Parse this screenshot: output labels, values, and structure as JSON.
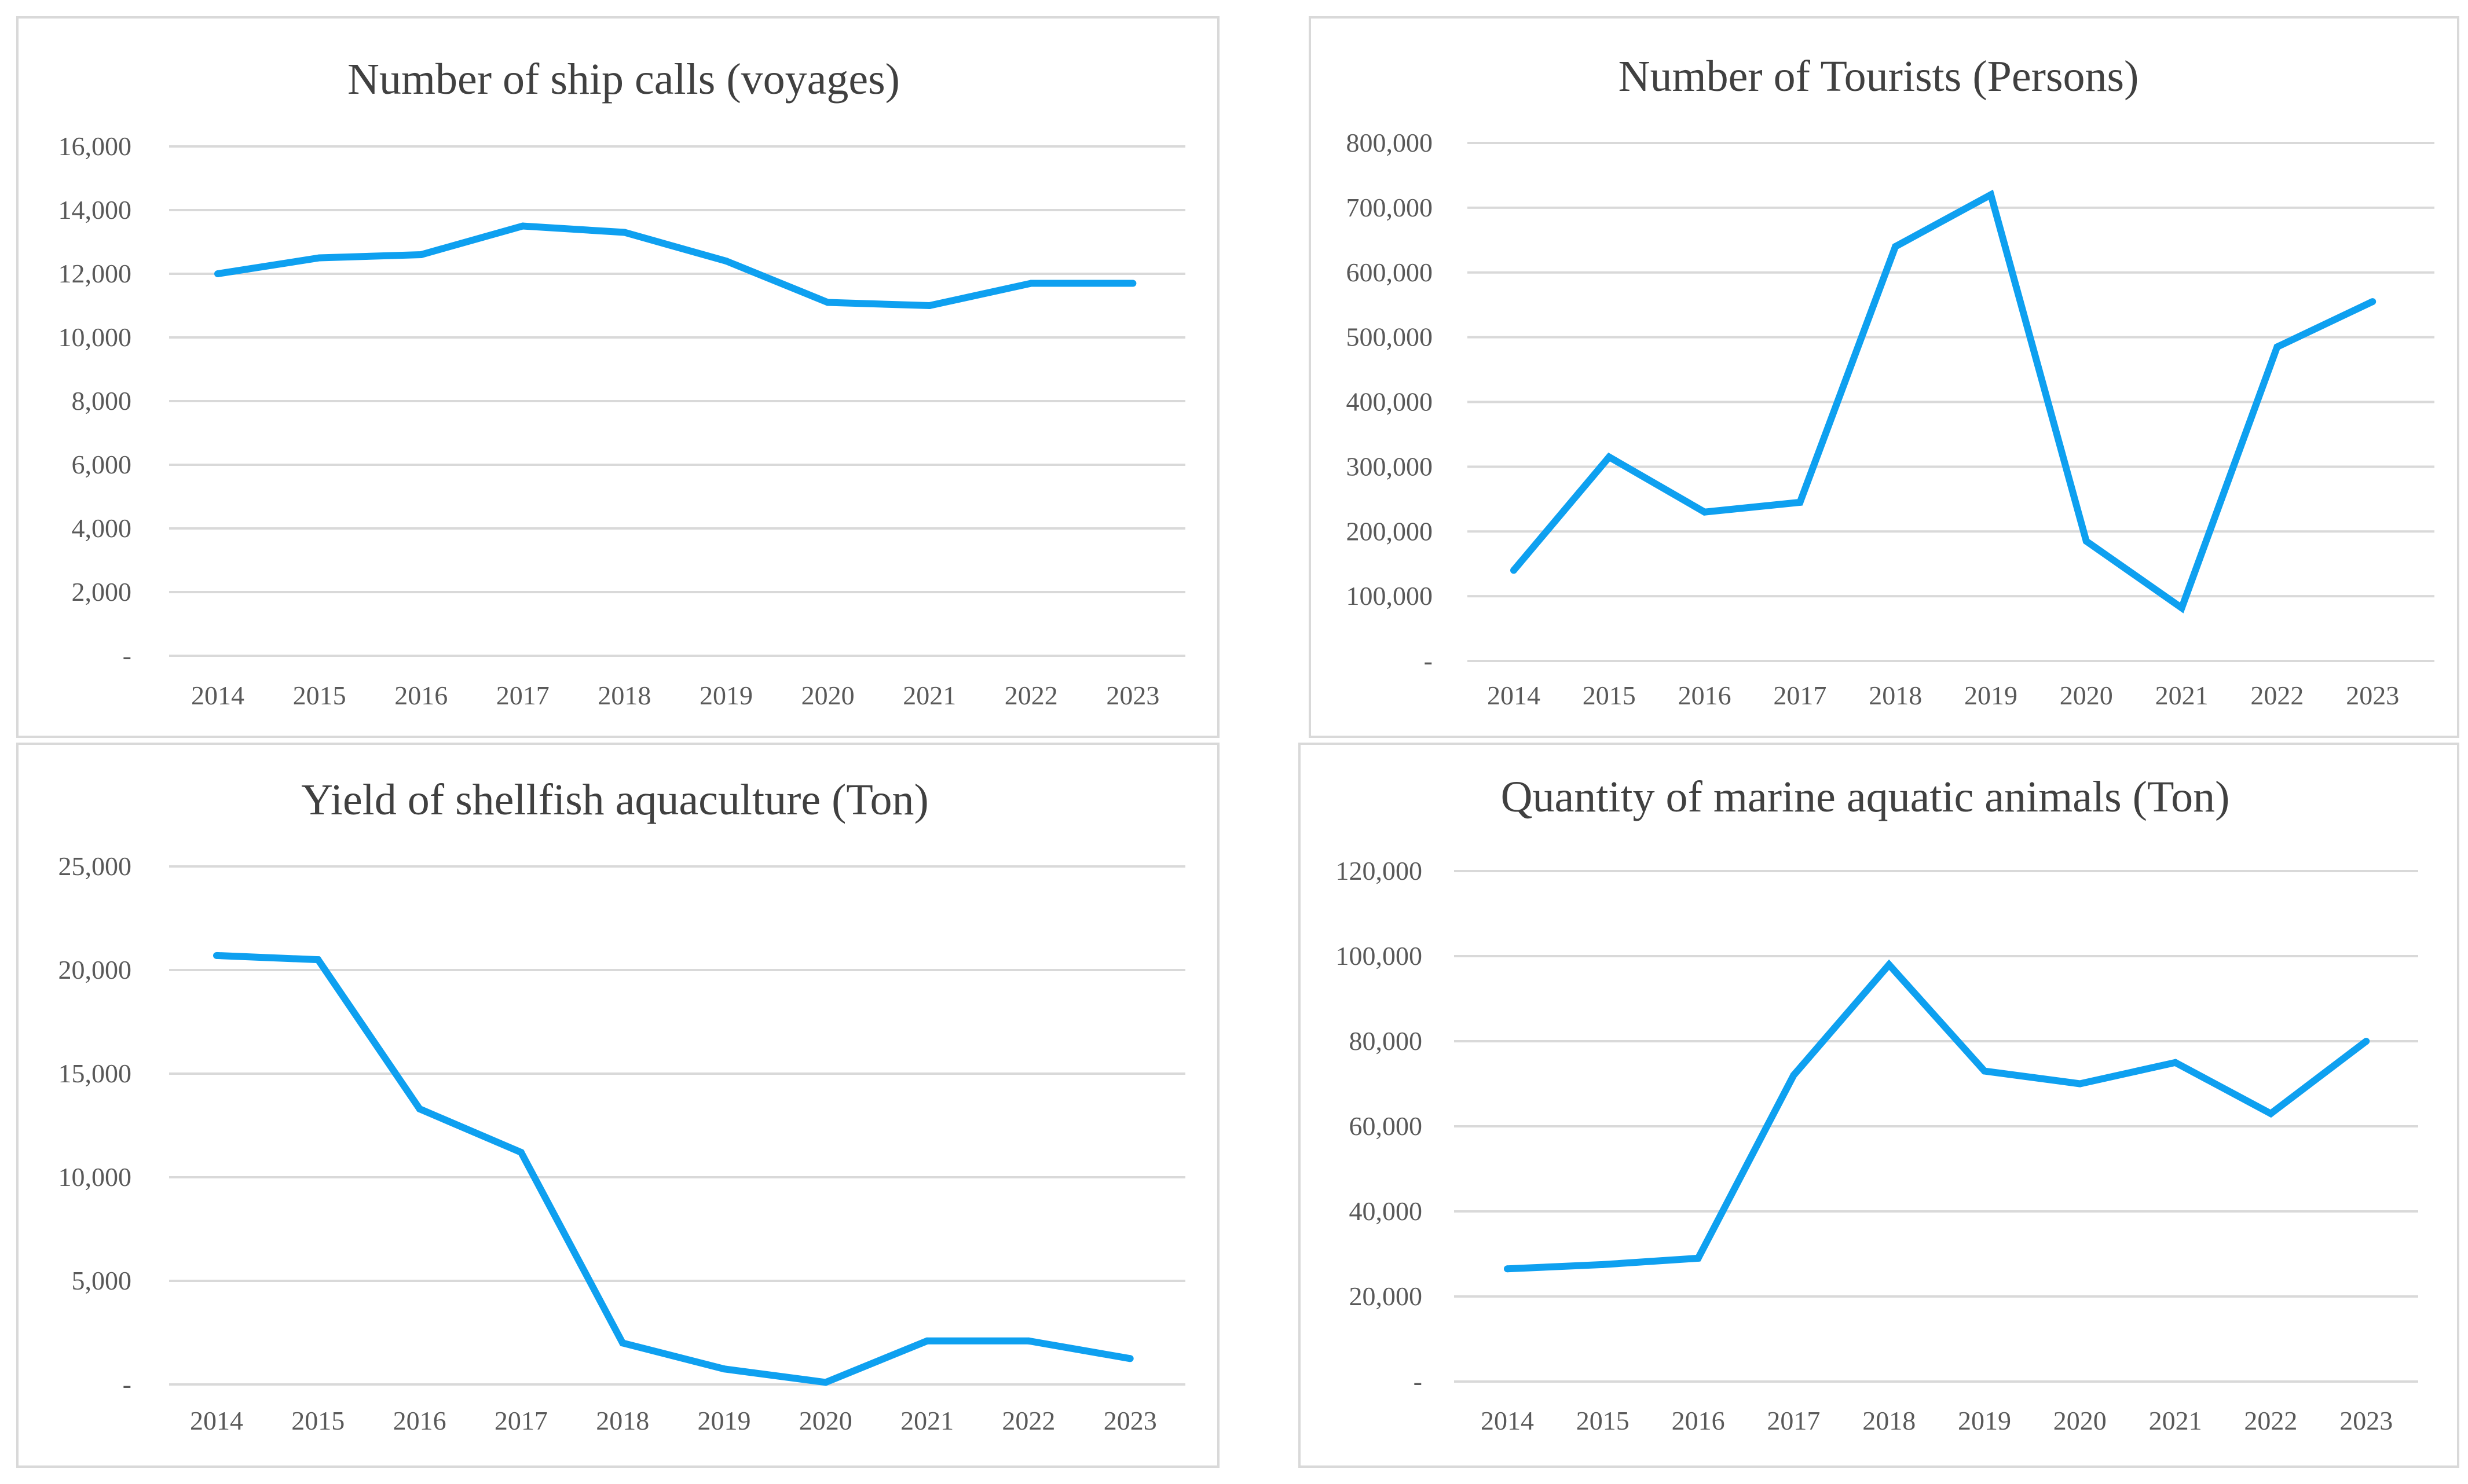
{
  "colors": {
    "series": "#0ea0f0",
    "grid": "#d9d9d9",
    "title": "#404040",
    "tick": "#595959",
    "border": "#d9d9d9"
  },
  "chart_data": [
    {
      "type": "line",
      "title": "Number of ship calls (voyages)",
      "xlabel": "",
      "ylabel": "",
      "grid": true,
      "legend": "none",
      "categories": [
        "2014",
        "2015",
        "2016",
        "2017",
        "2018",
        "2019",
        "2020",
        "2021",
        "2022",
        "2023"
      ],
      "series": [
        {
          "name": "Number of ship calls",
          "values": [
            12000,
            12500,
            12600,
            13500,
            13300,
            12400,
            11100,
            11000,
            11700,
            11700
          ]
        }
      ],
      "ylim": [
        0,
        16000
      ],
      "yticks": [
        0,
        2000,
        4000,
        6000,
        8000,
        10000,
        12000,
        14000,
        16000
      ],
      "ytick_labels": [
        "-",
        "2,000",
        "4,000",
        "6,000",
        "8,000",
        "10,000",
        "12,000",
        "14,000",
        "16,000"
      ]
    },
    {
      "type": "line",
      "title": "Number of Tourists (Persons)",
      "xlabel": "",
      "ylabel": "",
      "grid": true,
      "legend": "none",
      "categories": [
        "2014",
        "2015",
        "2016",
        "2017",
        "2018",
        "2019",
        "2020",
        "2021",
        "2022",
        "2023"
      ],
      "series": [
        {
          "name": "Number of Tourists",
          "values": [
            140000,
            315000,
            230000,
            245000,
            640000,
            720000,
            185000,
            82000,
            485000,
            555000
          ]
        }
      ],
      "ylim": [
        0,
        800000
      ],
      "yticks": [
        0,
        100000,
        200000,
        300000,
        400000,
        500000,
        600000,
        700000,
        800000
      ],
      "ytick_labels": [
        "-",
        "100,000",
        "200,000",
        "300,000",
        "400,000",
        "500,000",
        "600,000",
        "700,000",
        "800,000"
      ]
    },
    {
      "type": "line",
      "title": "Yield  of shellfish aquaculture (Ton)",
      "xlabel": "",
      "ylabel": "",
      "grid": true,
      "legend": "none",
      "categories": [
        "2014",
        "2015",
        "2016",
        "2017",
        "2018",
        "2019",
        "2020",
        "2021",
        "2022",
        "2023"
      ],
      "series": [
        {
          "name": "Yield of shellfish aquaculture",
          "values": [
            20700,
            20500,
            13300,
            11200,
            2000,
            750,
            100,
            2100,
            2100,
            1250
          ]
        }
      ],
      "ylim": [
        0,
        25000
      ],
      "yticks": [
        0,
        5000,
        10000,
        15000,
        20000,
        25000
      ],
      "ytick_labels": [
        "-",
        "5,000",
        "10,000",
        "15,000",
        "20,000",
        "25,000"
      ]
    },
    {
      "type": "line",
      "title": "Quantity of marine aquatic animals (Ton)",
      "xlabel": "",
      "ylabel": "",
      "grid": true,
      "legend": "none",
      "categories": [
        "2014",
        "2015",
        "2016",
        "2017",
        "2018",
        "2019",
        "2020",
        "2021",
        "2022",
        "2023"
      ],
      "series": [
        {
          "name": "Quantity of marine aquatic animals",
          "values": [
            26500,
            27500,
            29000,
            72000,
            98000,
            73000,
            70000,
            75000,
            63000,
            80000
          ]
        }
      ],
      "ylim": [
        0,
        120000
      ],
      "yticks": [
        0,
        20000,
        40000,
        60000,
        80000,
        100000,
        120000
      ],
      "ytick_labels": [
        "-",
        "20,000",
        "40,000",
        "60,000",
        "80,000",
        "100,000",
        "120,000"
      ]
    }
  ]
}
